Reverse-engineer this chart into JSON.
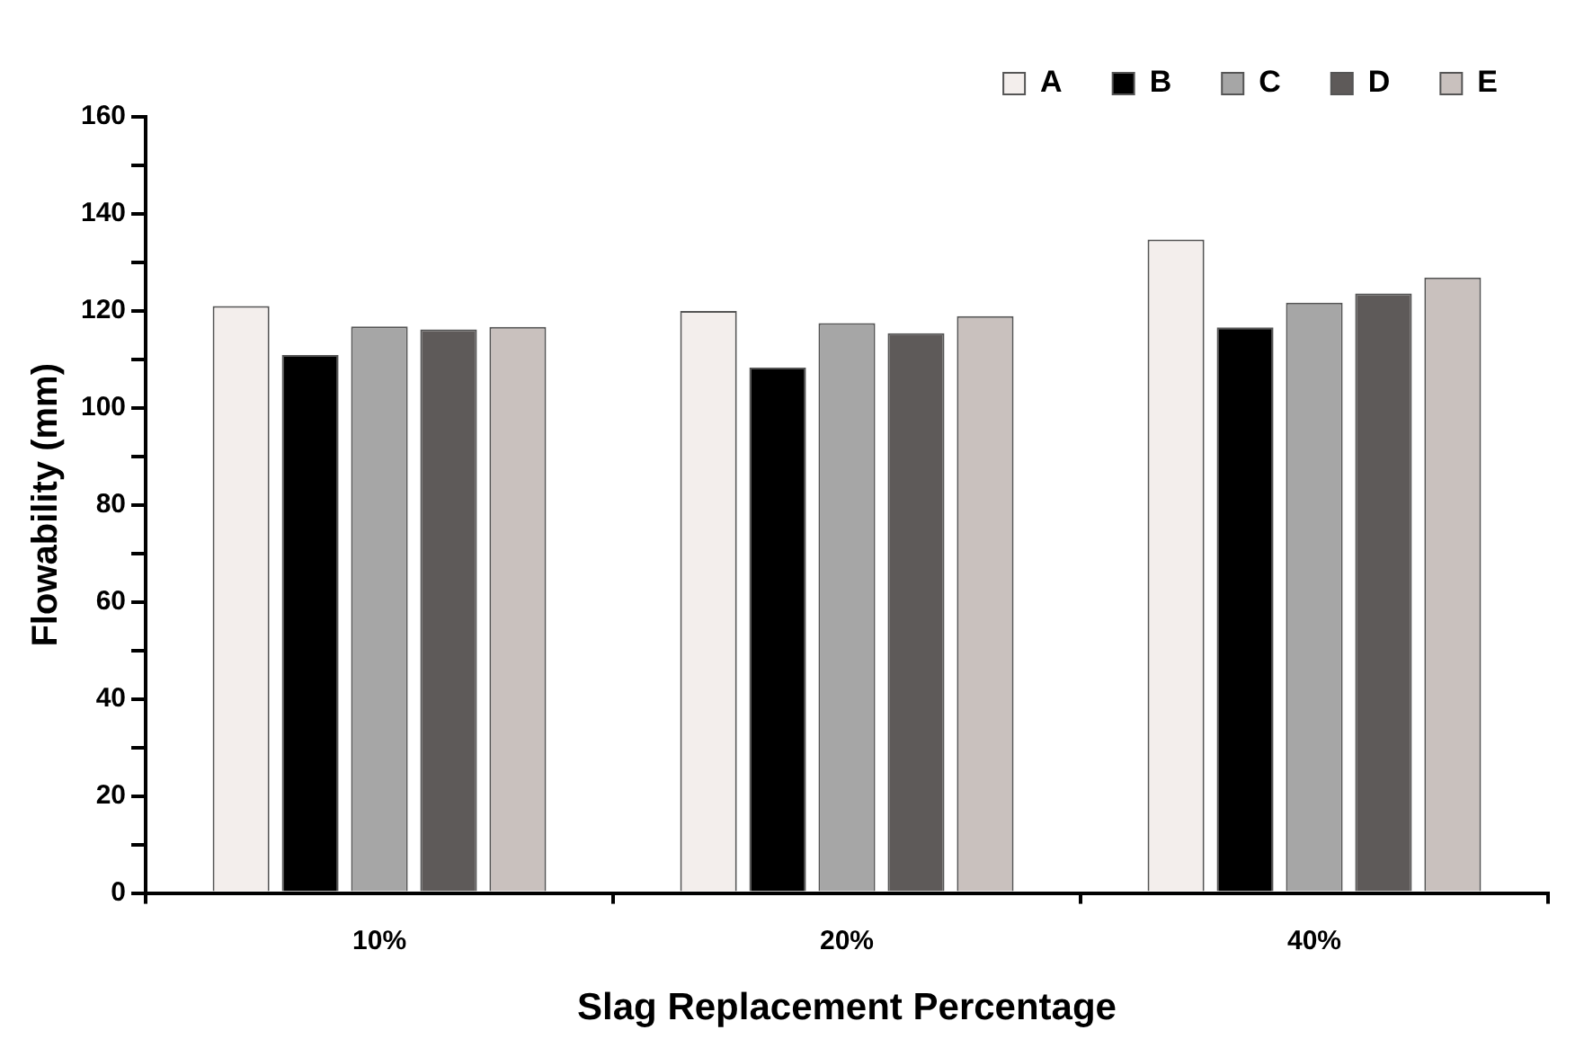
{
  "chart_data": {
    "type": "bar",
    "xlabel": "Slag Replacement Percentage",
    "ylabel": "Flowability (mm)",
    "categories": [
      "10%",
      "20%",
      "40%"
    ],
    "series": [
      {
        "name": "A",
        "color": "#f3eeec",
        "values": [
          121.0,
          120.0,
          134.7
        ]
      },
      {
        "name": "B",
        "color": "#000000",
        "values": [
          110.9,
          108.3,
          116.6
        ]
      },
      {
        "name": "C",
        "color": "#a6a6a6",
        "values": [
          116.8,
          117.5,
          121.7
        ]
      },
      {
        "name": "D",
        "color": "#5e5a59",
        "values": [
          116.2,
          115.4,
          123.6
        ]
      },
      {
        "name": "E",
        "color": "#c9c1be",
        "values": [
          116.7,
          118.9,
          126.9
        ]
      }
    ],
    "ylim": [
      0,
      160
    ],
    "yticks": [
      0,
      {
        "value": 10,
        "label": null
      },
      20,
      {
        "value": 30,
        "label": null
      },
      40,
      {
        "value": 50,
        "label": null
      },
      60,
      {
        "value": 70,
        "label": null
      },
      80,
      {
        "value": 90,
        "label": null
      },
      100,
      {
        "value": 110,
        "label": null
      },
      120,
      {
        "value": 130,
        "label": null
      },
      140,
      {
        "value": 150,
        "label": null
      },
      160
    ],
    "grid": false,
    "legend": "top right"
  }
}
